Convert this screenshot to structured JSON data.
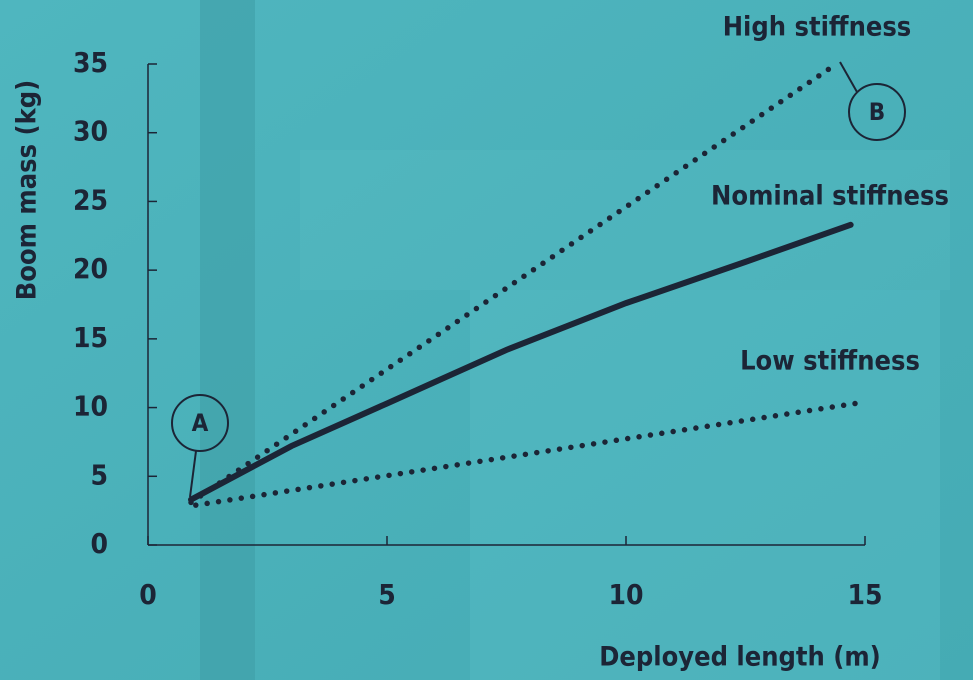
{
  "chart_data": {
    "type": "line",
    "xlabel": "Deployed length (m)",
    "ylabel": "Boom mass (kg)",
    "xlim": [
      0,
      15
    ],
    "xticks": [
      0,
      5,
      10,
      15
    ],
    "ylim": [
      0,
      35
    ],
    "yticks": [
      0,
      5,
      10,
      15,
      20,
      25,
      30,
      35
    ],
    "grid": false,
    "series": [
      {
        "name": "High stiffness",
        "color": "#1c2536",
        "style": "dotted",
        "x": [
          0.9,
          14.4
        ],
        "values": [
          3.1,
          35
        ]
      },
      {
        "name": "Nominal stiffness",
        "color": "#1c2536",
        "style": "solid",
        "x": [
          0.9,
          3,
          5,
          7.5,
          10,
          12.5,
          14.7
        ],
        "values": [
          3.3,
          7.2,
          10.3,
          14.2,
          17.6,
          20.6,
          23.3
        ]
      },
      {
        "name": "Low stiffness",
        "color": "#1c2536",
        "style": "dotted",
        "x": [
          1,
          14.8
        ],
        "values": [
          2.9,
          10.3
        ]
      }
    ],
    "annotations": [
      "A",
      "B"
    ]
  }
}
